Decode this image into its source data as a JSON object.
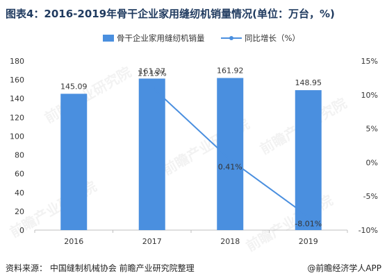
{
  "title": "图表4：2016-2019年骨干企业家用缝纫机销量情况(单位：万台，%)",
  "source": "资料来源：  中国缝制机械协会   前瞻产业研究院整理",
  "credit": "@前瞻经济学人APP",
  "watermark": "前瞻产业研究院",
  "colors": {
    "bar": "#4a8fdf",
    "line": "#4a8fdf",
    "axis": "#bfbfbf",
    "text": "#333333"
  },
  "chart_data": {
    "type": "bar",
    "categories": [
      "2016",
      "2017",
      "2018",
      "2019"
    ],
    "series": [
      {
        "name": "骨干企业家用缝纫机销量",
        "type": "bar",
        "axis": "left",
        "values": [
          145.09,
          161.27,
          161.92,
          148.95
        ],
        "labels": [
          "145.09",
          "161.27",
          "161.92",
          "148.95"
        ]
      },
      {
        "name": "同比增长（%）",
        "type": "line",
        "axis": "right",
        "x": [
          "2017",
          "2018",
          "2019"
        ],
        "values": [
          11.15,
          0.41,
          -8.01
        ],
        "labels": [
          "11.15%",
          "0.41%",
          "-8.01%"
        ]
      }
    ],
    "yleft": {
      "min": 0,
      "max": 180,
      "ticks": [
        "0",
        "20",
        "40",
        "60",
        "80",
        "100",
        "120",
        "140",
        "160",
        "180"
      ]
    },
    "yright": {
      "min": -10,
      "max": 15,
      "ticks": [
        "-10%",
        "-5%",
        "0%",
        "5%",
        "10%",
        "15%"
      ]
    },
    "legend": "top-center",
    "grid": false
  }
}
